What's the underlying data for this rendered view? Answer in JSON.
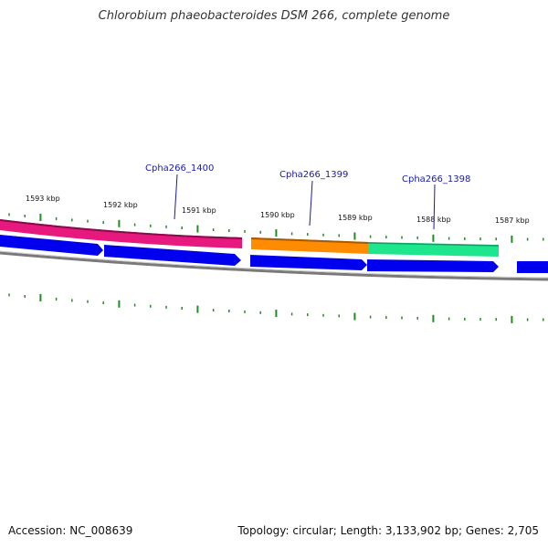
{
  "header": {
    "title": "Chlorobium phaeobacteroides DSM 266, complete genome"
  },
  "footer": {
    "accession": "Accession: NC_008639",
    "summary": "Topology: circular; Length: 3,133,902 bp; Genes: 2,705"
  },
  "ruler": {
    "labels": [
      "1593 kbp",
      "1592 kbp",
      "1591 kbp",
      "1590 kbp",
      "1589 kbp",
      "1588 kbp",
      "1587 kbp"
    ]
  },
  "gene_labels": [
    "Cpha266_1400",
    "Cpha266_1399",
    "Cpha266_1398"
  ],
  "colors": {
    "pink": "#e8197e",
    "orange": "#ff8c00",
    "teal": "#1ee68c",
    "blue": "#0000ee",
    "tick": "#228b22",
    "label": "#1a1aa8",
    "backbone": "#7a7a7a"
  }
}
